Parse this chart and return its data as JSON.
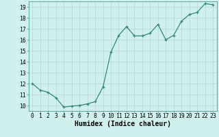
{
  "x": [
    0,
    1,
    2,
    3,
    4,
    5,
    6,
    7,
    8,
    9,
    10,
    11,
    12,
    13,
    14,
    15,
    16,
    17,
    18,
    19,
    20,
    21,
    22,
    23
  ],
  "y": [
    12.0,
    11.4,
    11.2,
    10.7,
    9.85,
    9.95,
    10.0,
    10.15,
    10.35,
    11.7,
    14.85,
    16.4,
    17.2,
    16.35,
    16.35,
    16.6,
    17.4,
    16.0,
    16.4,
    17.7,
    18.3,
    18.5,
    19.3,
    19.2
  ],
  "line_color": "#2d8a7a",
  "marker": "+",
  "marker_size": 3.5,
  "bg_color": "#cff0ec",
  "grid_color": "#b8dbd7",
  "xlabel": "Humidex (Indice chaleur)",
  "xlabel_fontsize": 7,
  "tick_fontsize": 5.8,
  "xlim": [
    -0.5,
    23.5
  ],
  "ylim": [
    9.5,
    19.5
  ],
  "yticks": [
    10,
    11,
    12,
    13,
    14,
    15,
    16,
    17,
    18,
    19
  ],
  "xticks": [
    0,
    1,
    2,
    3,
    4,
    5,
    6,
    7,
    8,
    9,
    10,
    11,
    12,
    13,
    14,
    15,
    16,
    17,
    18,
    19,
    20,
    21,
    22,
    23
  ]
}
